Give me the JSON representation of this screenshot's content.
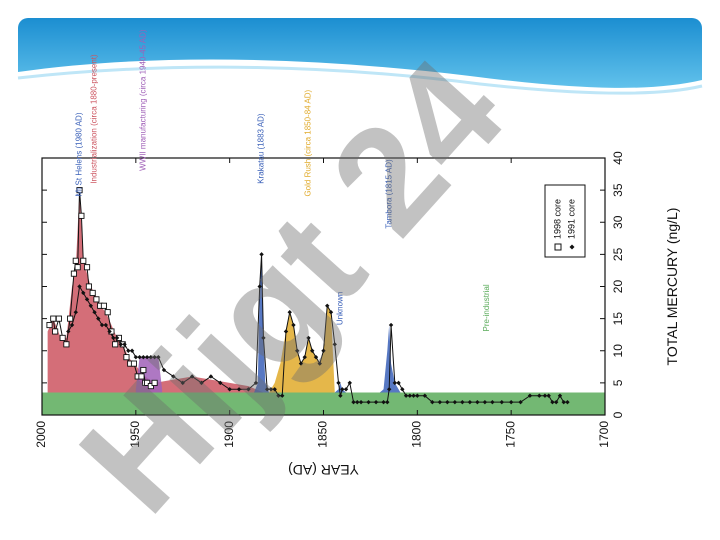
{
  "slide": {
    "banner_color": "#2aa6df",
    "watermark": "Hijgt 24"
  },
  "chart_data": {
    "type": "area",
    "title": "",
    "xlabel": "YEAR (AD)",
    "ylabel": "TOTAL MERCURY (ng/L)",
    "xlim": [
      2000,
      1700
    ],
    "ylim": [
      0,
      40
    ],
    "x_ticks": [
      2000,
      1950,
      1900,
      1850,
      1800,
      1750,
      1700
    ],
    "y_ticks": [
      0,
      5,
      10,
      15,
      20,
      25,
      30,
      35,
      40
    ],
    "rotation": "rotated 90 degrees clockwise (x axis on left, y axis on right)",
    "legend": {
      "placement": "upper-right",
      "entries": [
        {
          "label": "1998 core",
          "marker": "open-square"
        },
        {
          "label": "1991 core",
          "marker": "filled-diamond"
        }
      ]
    },
    "colors": {
      "pre_industrial": "#5aab5a",
      "industrialization": "#cc5560",
      "wwii": "#a060b8",
      "volcanic": "#3a60b8",
      "gold_rush": "#e0aa2a",
      "unknown": "#3a60b8"
    },
    "annotations": [
      {
        "label": "Mt St Helens (1980 AD)",
        "x": 1980,
        "color": "#3a60b8"
      },
      {
        "label": "Industrialization (circa 1880-present)",
        "x": 1972,
        "color": "#cc5560"
      },
      {
        "label": "WWII manufacturing (circa 1940-45 AD)",
        "x": 1946,
        "color": "#a060b8"
      },
      {
        "label": "Krakatau (1883 AD)",
        "x": 1883,
        "color": "#3a60b8"
      },
      {
        "label": "Gold Rush (circa 1850-84 AD)",
        "x": 1858,
        "color": "#e0aa2a"
      },
      {
        "label": "Unknown",
        "x": 1841,
        "color": "#3a60b8"
      },
      {
        "label": "Tambora (1815 AD)",
        "x": 1815,
        "color": "#3a60b8"
      },
      {
        "label": "Pre-industrial",
        "x": 1763,
        "color": "#5aab5a"
      }
    ],
    "series": [
      {
        "name": "1998 core",
        "x": [
          1996,
          1994,
          1993,
          1991,
          1989,
          1987,
          1985,
          1983,
          1982,
          1981,
          1980,
          1979,
          1978,
          1976,
          1975,
          1973,
          1971,
          1969,
          1967,
          1965,
          1963,
          1961,
          1959,
          1957,
          1955,
          1953,
          1951,
          1949,
          1947,
          1946,
          1945,
          1944,
          1942,
          1940
        ],
        "y": [
          14,
          15,
          13,
          15,
          12,
          11,
          15,
          22,
          24,
          23,
          35,
          31,
          24,
          23,
          20,
          19,
          18,
          17,
          17,
          16,
          13,
          11,
          12,
          11,
          9,
          8,
          8,
          6,
          6,
          7,
          5,
          5,
          4.5,
          5
        ]
      },
      {
        "name": "1991 core",
        "x": [
          1986,
          1984,
          1982,
          1980,
          1978,
          1976,
          1974,
          1972,
          1970,
          1968,
          1966,
          1964,
          1962,
          1960,
          1958,
          1956,
          1954,
          1952,
          1950,
          1948,
          1946,
          1944,
          1942,
          1940,
          1938,
          1935,
          1930,
          1925,
          1920,
          1915,
          1910,
          1905,
          1900,
          1895,
          1890,
          1886,
          1884,
          1883,
          1882,
          1880,
          1878,
          1876,
          1874,
          1872,
          1870,
          1868,
          1866,
          1864,
          1862,
          1860,
          1858,
          1856,
          1854,
          1852,
          1850,
          1848,
          1846,
          1844,
          1842,
          1841,
          1840,
          1838,
          1836,
          1834,
          1832,
          1830,
          1826,
          1822,
          1818,
          1816,
          1815,
          1814,
          1812,
          1810,
          1808,
          1806,
          1804,
          1802,
          1800,
          1796,
          1792,
          1788,
          1784,
          1780,
          1776,
          1772,
          1768,
          1764,
          1760,
          1755,
          1750,
          1745,
          1740,
          1735,
          1732,
          1730,
          1728,
          1726,
          1724,
          1722,
          1720
        ],
        "y": [
          13,
          14,
          16,
          20,
          19,
          18,
          17,
          16,
          15,
          14,
          14,
          13,
          12,
          12,
          11,
          11,
          10,
          10,
          9,
          9,
          9,
          9,
          9,
          9,
          9,
          7,
          6,
          5,
          6,
          5,
          6,
          5,
          4,
          4,
          4,
          5,
          20,
          25,
          12,
          4,
          4,
          4,
          3,
          3,
          13,
          16,
          14,
          10,
          8,
          9,
          12,
          10,
          9,
          8,
          10,
          17,
          16,
          11,
          5,
          3,
          4,
          4,
          5,
          2,
          2,
          2,
          2,
          2,
          2,
          2,
          4,
          14,
          5,
          5,
          4,
          3,
          3,
          3,
          3,
          3,
          2,
          2,
          2,
          2,
          2,
          2,
          2,
          2,
          2,
          2,
          2,
          2,
          3,
          3,
          3,
          3,
          2,
          2,
          3,
          2,
          2
        ]
      }
    ],
    "shaded_regions": [
      {
        "name": "Pre-industrial",
        "x": [
          2000,
          1700
        ],
        "y": [
          3.5,
          3.5
        ]
      },
      {
        "name": "Industrialization",
        "x": [
          1997,
          1994,
          1990,
          1987,
          1984,
          1982,
          1980,
          1978,
          1976,
          1974,
          1972,
          1969,
          1966,
          1963,
          1960,
          1957,
          1954,
          1951,
          1948,
          1945,
          1940,
          1930,
          1920,
          1910,
          1900,
          1890,
          1882
        ],
        "y": [
          13,
          15,
          12,
          12,
          20,
          23,
          35,
          24,
          22,
          20,
          19,
          17,
          16,
          14,
          12,
          11,
          9,
          8,
          7,
          6,
          5,
          5.5,
          6,
          5.5,
          5,
          4.5,
          3.5
        ]
      },
      {
        "name": "WWII manufacturing",
        "x": [
          1950,
          1948,
          1946,
          1944,
          1942,
          1940,
          1938,
          1936
        ],
        "y": [
          4,
          9,
          9,
          9,
          9,
          9,
          9,
          4
        ]
      },
      {
        "name": "Krakatau",
        "x": [
          1887,
          1885,
          1884,
          1883,
          1882,
          1881,
          1879
        ],
        "y": [
          3.5,
          5,
          20,
          25,
          12,
          5,
          3.5
        ]
      },
      {
        "name": "Gold Rush",
        "x": [
          1879,
          1876,
          1873,
          1870,
          1868,
          1866,
          1864,
          1862,
          1860,
          1858,
          1856,
          1854,
          1852,
          1850,
          1848,
          1846,
          1844
        ],
        "y": [
          3.5,
          5,
          8,
          13,
          16,
          14,
          10,
          8,
          9,
          12,
          10,
          9,
          8,
          10,
          17,
          16,
          3.5
        ]
      },
      {
        "name": "Unknown",
        "x": [
          1844,
          1842,
          1841,
          1840,
          1838
        ],
        "y": [
          3.5,
          4,
          5,
          4,
          3.5
        ]
      },
      {
        "name": "Tambora",
        "x": [
          1820,
          1818,
          1816,
          1815,
          1814,
          1812,
          1809
        ],
        "y": [
          3.5,
          4,
          10,
          14,
          8,
          5,
          3.5
        ]
      }
    ]
  }
}
